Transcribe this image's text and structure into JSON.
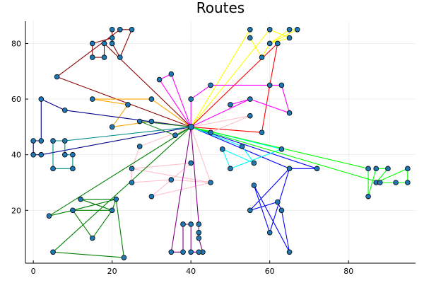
{
  "chart_data": {
    "type": "scatter",
    "title": "Routes",
    "xlabel": "",
    "ylabel": "",
    "xlim": [
      -2,
      97
    ],
    "ylim": [
      1,
      88
    ],
    "xticks": [
      0,
      20,
      40,
      60,
      80
    ],
    "yticks": [
      20,
      40,
      60,
      80
    ],
    "grid": true,
    "legend": "none",
    "depot": [
      40,
      50
    ],
    "marker_color": "#1f77b4",
    "series": [
      {
        "color": "#8b0000",
        "points": [
          [
            40,
            50
          ],
          [
            6,
            68
          ],
          [
            22,
            85
          ],
          [
            25,
            85
          ],
          [
            22,
            75
          ],
          [
            20,
            80
          ],
          [
            20,
            85
          ],
          [
            20,
            82
          ],
          [
            15,
            80
          ],
          [
            15,
            75
          ],
          [
            18,
            75
          ],
          [
            18,
            80
          ],
          [
            40,
            50
          ]
        ]
      },
      {
        "color": "#ffff00",
        "points": [
          [
            40,
            50
          ],
          [
            55,
            85
          ],
          [
            55,
            82
          ],
          [
            58,
            75
          ],
          [
            60,
            80
          ],
          [
            65,
            85
          ],
          [
            67,
            85
          ],
          [
            60,
            80
          ],
          [
            65,
            82
          ],
          [
            60,
            85
          ],
          [
            40,
            50
          ]
        ]
      },
      {
        "color": "#ff0000",
        "points": [
          [
            40,
            50
          ],
          [
            62,
            80
          ],
          [
            60,
            65
          ],
          [
            58,
            48
          ],
          [
            40,
            50
          ]
        ]
      },
      {
        "color": "#ff00ff",
        "points": [
          [
            40,
            50
          ],
          [
            35,
            69
          ],
          [
            32,
            67
          ],
          [
            40,
            50
          ],
          [
            40,
            60
          ],
          [
            45,
            65
          ],
          [
            63,
            65
          ],
          [
            65,
            55
          ],
          [
            55,
            60
          ],
          [
            50,
            58
          ],
          [
            55,
            60
          ],
          [
            40,
            50
          ]
        ]
      },
      {
        "color": "#ffa500",
        "points": [
          [
            40,
            50
          ],
          [
            30,
            60
          ],
          [
            15,
            60
          ],
          [
            24,
            58
          ],
          [
            20,
            50
          ],
          [
            30,
            52
          ],
          [
            40,
            50
          ]
        ]
      },
      {
        "color": "#00008b",
        "points": [
          [
            40,
            50
          ],
          [
            8,
            56
          ],
          [
            2,
            60
          ],
          [
            2,
            45
          ],
          [
            0,
            45
          ],
          [
            0,
            40
          ],
          [
            2,
            40
          ],
          [
            40,
            50
          ]
        ]
      },
      {
        "color": "#008b8b",
        "points": [
          [
            40,
            50
          ],
          [
            8,
            45
          ],
          [
            5,
            45
          ],
          [
            5,
            35
          ],
          [
            10,
            35
          ],
          [
            10,
            40
          ],
          [
            8,
            40
          ],
          [
            8,
            45
          ],
          [
            40,
            50
          ]
        ]
      },
      {
        "color": "#ffc0cb",
        "points": [
          [
            40,
            50
          ],
          [
            55,
            54
          ],
          [
            45,
            48
          ],
          [
            40,
            50
          ],
          [
            27,
            43
          ],
          [
            25,
            35
          ],
          [
            45,
            30
          ],
          [
            35,
            31
          ],
          [
            25,
            30
          ],
          [
            25,
            35
          ],
          [
            40,
            37
          ],
          [
            30,
            25
          ],
          [
            45,
            30
          ],
          [
            40,
            50
          ]
        ]
      },
      {
        "color": "#008000",
        "points": [
          [
            40,
            50
          ],
          [
            4,
            18
          ],
          [
            10,
            20
          ],
          [
            20,
            20
          ],
          [
            21,
            24
          ],
          [
            12,
            24
          ],
          [
            20,
            20
          ],
          [
            15,
            10
          ],
          [
            10,
            20
          ],
          [
            21,
            24
          ],
          [
            23,
            3
          ],
          [
            5,
            5
          ],
          [
            40,
            50
          ]
        ]
      },
      {
        "color": "#800080",
        "points": [
          [
            40,
            50
          ],
          [
            42,
            15
          ],
          [
            42,
            12
          ],
          [
            42,
            10
          ],
          [
            43,
            5
          ],
          [
            42,
            5
          ],
          [
            40,
            5
          ],
          [
            40,
            15
          ],
          [
            38,
            15
          ],
          [
            38,
            5
          ],
          [
            35,
            5
          ],
          [
            40,
            50
          ]
        ]
      },
      {
        "color": "#0000ff",
        "points": [
          [
            40,
            50
          ],
          [
            72,
            35
          ],
          [
            65,
            35
          ],
          [
            55,
            20
          ],
          [
            62,
            23
          ],
          [
            63,
            20
          ],
          [
            65,
            5
          ],
          [
            56,
            29
          ],
          [
            60,
            12
          ],
          [
            65,
            35
          ],
          [
            40,
            50
          ]
        ]
      },
      {
        "color": "#00ffff",
        "points": [
          [
            40,
            50
          ],
          [
            53,
            43
          ],
          [
            56,
            37
          ],
          [
            48,
            42
          ],
          [
            50,
            35
          ],
          [
            63,
            42
          ],
          [
            40,
            50
          ]
        ]
      },
      {
        "color": "#00ff00",
        "points": [
          [
            40,
            50
          ],
          [
            85,
            35
          ],
          [
            85,
            25
          ],
          [
            87,
            35
          ],
          [
            90,
            35
          ],
          [
            87,
            30
          ],
          [
            95,
            35
          ],
          [
            95,
            30
          ],
          [
            92,
            30
          ],
          [
            88,
            30
          ],
          [
            40,
            50
          ]
        ]
      },
      {
        "color": "#228b22",
        "points": [
          [
            40,
            50
          ],
          [
            36,
            47
          ],
          [
            27,
            52
          ],
          [
            40,
            50
          ]
        ]
      }
    ]
  }
}
